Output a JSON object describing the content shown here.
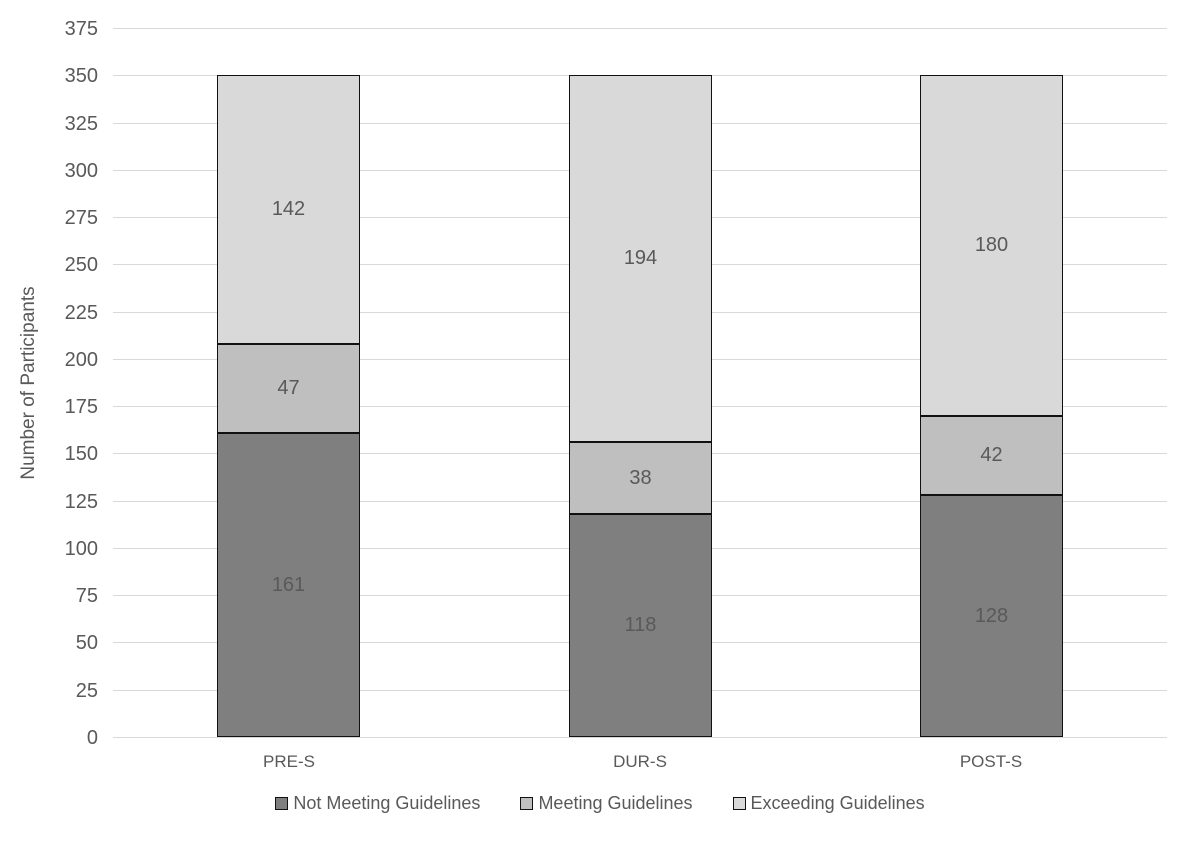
{
  "chart_data": {
    "type": "bar",
    "stacked": true,
    "title": "",
    "xlabel": "",
    "ylabel": "Number of Participants",
    "categories": [
      "PRE-S",
      "DUR-S",
      "POST-S"
    ],
    "series": [
      {
        "name": "Not Meeting Guidelines",
        "color": "#7f7f7f",
        "values": [
          161,
          118,
          128
        ]
      },
      {
        "name": "Meeting Guidelines",
        "color": "#bfbfbf",
        "values": [
          47,
          38,
          42
        ]
      },
      {
        "name": "Exceeding Guidelines",
        "color": "#d9d9d9",
        "values": [
          142,
          194,
          180
        ]
      }
    ],
    "ylim": [
      0,
      375
    ],
    "yticks": [
      0,
      25,
      50,
      75,
      100,
      125,
      150,
      175,
      200,
      225,
      250,
      275,
      300,
      325,
      350,
      375
    ],
    "grid": true,
    "grid_color": "#d9d9d9",
    "bar_border_color": "#111111",
    "text_color": "#595959",
    "legend_position": "bottom"
  }
}
